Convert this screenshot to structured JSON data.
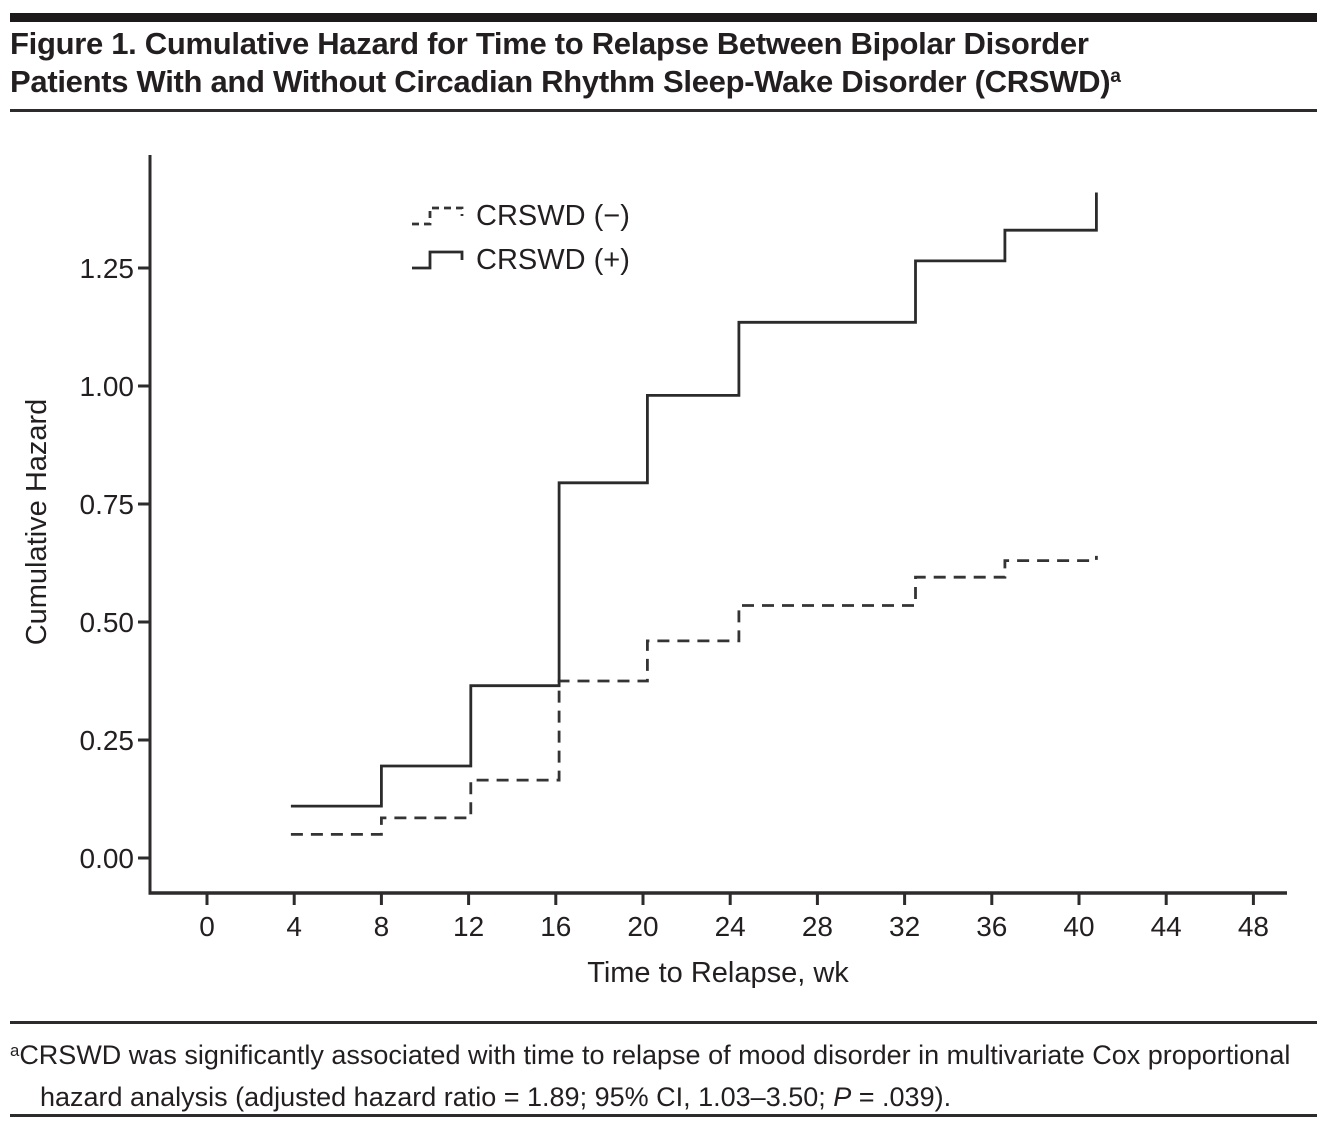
{
  "title": {
    "line1": "Figure 1. Cumulative Hazard for Time to Relapse Between Bipolar Disorder",
    "line2": "Patients With and Without Circadian Rhythm Sleep-Wake Disorder (CRSWD)",
    "superscript": "a"
  },
  "chart_data": {
    "type": "line",
    "subtype": "step-post",
    "title": "",
    "xlabel": "Time to Relapse, wk",
    "ylabel": "Cumulative Hazard",
    "x_ticks": [
      0,
      4,
      8,
      12,
      16,
      20,
      24,
      28,
      32,
      36,
      40,
      44,
      48
    ],
    "y_ticks": [
      0,
      0.25,
      0.5,
      0.75,
      1,
      1.25
    ],
    "y_tick_labels": [
      "0.00",
      "0.25",
      "0.50",
      "0.75",
      "1.00",
      "1.25"
    ],
    "xlim": [
      -2.6,
      49.6
    ],
    "ylim": [
      0,
      1.48
    ],
    "grid": false,
    "legend_position": "inside-upper-left",
    "axis_color": "#2d2b2c",
    "text_color": "#231f20",
    "series": [
      {
        "name": "CRSWD (−)",
        "style": "dashed",
        "color": "#343434",
        "steps": [
          [
            3.85,
            0.05
          ],
          [
            8.0,
            0.085
          ],
          [
            12.1,
            0.165
          ],
          [
            16.15,
            0.375
          ],
          [
            20.2,
            0.46
          ],
          [
            24.4,
            0.535
          ],
          [
            32.5,
            0.595
          ],
          [
            36.6,
            0.63
          ]
        ],
        "end": [
          40.8,
          0.64
        ]
      },
      {
        "name": "CRSWD (+)",
        "style": "solid",
        "color": "#2b2b2b",
        "steps": [
          [
            3.85,
            0.11
          ],
          [
            8.0,
            0.195
          ],
          [
            12.1,
            0.365
          ],
          [
            16.15,
            0.795
          ],
          [
            20.2,
            0.98
          ],
          [
            24.4,
            1.135
          ],
          [
            32.5,
            1.265
          ],
          [
            36.6,
            1.33
          ]
        ],
        "end": [
          40.8,
          1.41
        ]
      }
    ]
  },
  "footnote": {
    "marker": "a",
    "text_before_p": "CRSWD was significantly associated with time to relapse of mood disorder in multivariate Cox proportional hazard analysis (adjusted hazard ratio = 1.89; 95% CI, 1.03–3.50; ",
    "p_label": "P",
    "text_after_p": " = .039)."
  }
}
